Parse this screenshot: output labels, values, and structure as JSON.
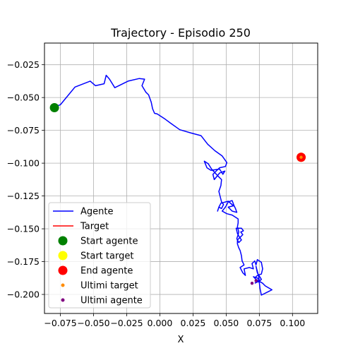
{
  "chart_data": {
    "type": "line",
    "title": "Trajectory - Episodio 250",
    "xlabel": "X",
    "ylabel": "",
    "xlim": [
      -0.087,
      0.119
    ],
    "ylim": [
      -0.2145,
      -0.0085
    ],
    "xticks": [
      -0.075,
      -0.05,
      -0.025,
      0.0,
      0.025,
      0.05,
      0.075,
      0.1
    ],
    "xtick_labels": [
      "−0.075",
      "−0.050",
      "−0.025",
      "0.000",
      "0.025",
      "0.050",
      "0.075",
      "0.100"
    ],
    "yticks": [
      -0.025,
      -0.05,
      -0.075,
      -0.1,
      -0.125,
      -0.15,
      -0.175,
      -0.2
    ],
    "ytick_labels": [
      "−0.025",
      "−0.050",
      "−0.075",
      "−0.100",
      "−0.125",
      "−0.150",
      "−0.175",
      "−0.200"
    ],
    "grid": true,
    "legend_position": "lower-left",
    "legend": [
      {
        "label": "Agente",
        "kind": "line",
        "color": "#0000ff"
      },
      {
        "label": "Target",
        "kind": "line",
        "color": "#ff0000"
      },
      {
        "label": "Start agente",
        "kind": "dot",
        "color": "#008000",
        "r": 6.5
      },
      {
        "label": "Start target",
        "kind": "dot",
        "color": "#ffff00",
        "r": 6.5
      },
      {
        "label": "End agente",
        "kind": "dot",
        "color": "#ff0000",
        "r": 6.5
      },
      {
        "label": "Ultimi target",
        "kind": "dot",
        "color": "#ff8c00",
        "r": 2.5
      },
      {
        "label": "Ultimi agente",
        "kind": "dot",
        "color": "#800080",
        "r": 2.5
      }
    ],
    "series": [
      {
        "name": "Agente",
        "color": "#0000ff",
        "points": [
          [
            -0.0795,
            -0.057
          ],
          [
            -0.075,
            -0.0555
          ],
          [
            -0.064,
            -0.042
          ],
          [
            -0.0525,
            -0.0375
          ],
          [
            -0.0485,
            -0.041
          ],
          [
            -0.042,
            -0.0395
          ],
          [
            -0.0405,
            -0.033
          ],
          [
            -0.038,
            -0.036
          ],
          [
            -0.034,
            -0.0425
          ],
          [
            -0.024,
            -0.0375
          ],
          [
            -0.0155,
            -0.0355
          ],
          [
            -0.0115,
            -0.036
          ],
          [
            -0.0135,
            -0.041
          ],
          [
            -0.0105,
            -0.046
          ],
          [
            -0.0085,
            -0.048
          ],
          [
            -0.0065,
            -0.0535
          ],
          [
            -0.0055,
            -0.0585
          ],
          [
            -0.004,
            -0.062
          ],
          [
            -0.002,
            -0.0625
          ],
          [
            0.004,
            -0.0665
          ],
          [
            0.008,
            -0.0695
          ],
          [
            0.015,
            -0.0745
          ],
          [
            0.0235,
            -0.077
          ],
          [
            0.031,
            -0.079
          ],
          [
            0.036,
            -0.0855
          ],
          [
            0.0415,
            -0.0905
          ],
          [
            0.047,
            -0.0945
          ],
          [
            0.0505,
            -0.0995
          ],
          [
            0.0495,
            -0.1025
          ],
          [
            0.045,
            -0.1035
          ],
          [
            0.04,
            -0.1085
          ],
          [
            0.041,
            -0.1125
          ],
          [
            0.045,
            -0.1075
          ],
          [
            0.049,
            -0.106
          ],
          [
            0.0475,
            -0.1085
          ],
          [
            0.045,
            -0.1045
          ],
          [
            0.0385,
            -0.1055
          ],
          [
            0.0355,
            -0.1035
          ],
          [
            0.0335,
            -0.0985
          ],
          [
            0.0365,
            -0.1005
          ],
          [
            0.039,
            -0.1045
          ],
          [
            0.0435,
            -0.1095
          ],
          [
            0.0465,
            -0.1125
          ],
          [
            0.046,
            -0.117
          ],
          [
            0.0445,
            -0.1215
          ],
          [
            0.0455,
            -0.1255
          ],
          [
            0.0465,
            -0.1295
          ],
          [
            0.048,
            -0.1315
          ],
          [
            0.0465,
            -0.1345
          ],
          [
            0.0445,
            -0.1335
          ],
          [
            0.0435,
            -0.1365
          ],
          [
            0.0445,
            -0.1335
          ],
          [
            0.046,
            -0.1305
          ],
          [
            0.0515,
            -0.129
          ],
          [
            0.0555,
            -0.1325
          ],
          [
            0.0515,
            -0.1335
          ],
          [
            0.0545,
            -0.1365
          ],
          [
            0.058,
            -0.1375
          ],
          [
            0.057,
            -0.1345
          ],
          [
            0.056,
            -0.1325
          ],
          [
            0.0545,
            -0.1285
          ],
          [
            0.0515,
            -0.1295
          ],
          [
            0.05,
            -0.1325
          ],
          [
            0.049,
            -0.134
          ],
          [
            0.047,
            -0.1365
          ],
          [
            0.0505,
            -0.1385
          ],
          [
            0.0545,
            -0.1395
          ],
          [
            0.0575,
            -0.1415
          ],
          [
            0.059,
            -0.1425
          ],
          [
            0.059,
            -0.1455
          ],
          [
            0.0585,
            -0.1485
          ],
          [
            0.0595,
            -0.1525
          ],
          [
            0.059,
            -0.1545
          ],
          [
            0.058,
            -0.1575
          ],
          [
            0.0595,
            -0.1605
          ],
          [
            0.0615,
            -0.1585
          ],
          [
            0.0595,
            -0.1555
          ],
          [
            0.0585,
            -0.1535
          ],
          [
            0.0575,
            -0.1495
          ],
          [
            0.0615,
            -0.1495
          ],
          [
            0.063,
            -0.1515
          ],
          [
            0.061,
            -0.1525
          ],
          [
            0.0625,
            -0.1545
          ],
          [
            0.0605,
            -0.1565
          ],
          [
            0.0585,
            -0.1585
          ],
          [
            0.0585,
            -0.1615
          ],
          [
            0.0595,
            -0.1645
          ],
          [
            0.0605,
            -0.1665
          ],
          [
            0.0615,
            -0.1705
          ],
          [
            0.062,
            -0.1745
          ],
          [
            0.0635,
            -0.1775
          ],
          [
            0.0605,
            -0.1795
          ],
          [
            0.0625,
            -0.1835
          ],
          [
            0.0645,
            -0.1855
          ],
          [
            0.0635,
            -0.1805
          ],
          [
            0.0675,
            -0.1795
          ],
          [
            0.0705,
            -0.1805
          ],
          [
            0.0695,
            -0.1765
          ],
          [
            0.0715,
            -0.1745
          ],
          [
            0.0725,
            -0.1775
          ],
          [
            0.0735,
            -0.1735
          ],
          [
            0.0765,
            -0.1755
          ],
          [
            0.0775,
            -0.1805
          ],
          [
            0.0765,
            -0.1845
          ],
          [
            0.0735,
            -0.1855
          ],
          [
            0.0715,
            -0.1875
          ],
          [
            0.0745,
            -0.1905
          ],
          [
            0.0765,
            -0.1885
          ],
          [
            0.0735,
            -0.1835
          ],
          [
            0.0725,
            -0.1785
          ],
          [
            0.0745,
            -0.1865
          ],
          [
            0.0755,
            -0.1955
          ],
          [
            0.0765,
            -0.2005
          ],
          [
            0.0845,
            -0.1965
          ],
          [
            0.0795,
            -0.1935
          ],
          [
            0.0775,
            -0.1915
          ],
          [
            0.0725,
            -0.1885
          ],
          [
            0.0705,
            -0.1865
          ],
          [
            0.0735,
            -0.1875
          ],
          [
            0.0755,
            -0.1895
          ],
          [
            0.0735,
            -0.1905
          ],
          [
            0.0715,
            -0.1915
          ]
        ]
      }
    ],
    "start_agente": {
      "x": -0.0795,
      "y": -0.0577,
      "color": "#008000"
    },
    "end_agente": {
      "x": 0.1065,
      "y": -0.0955,
      "color": "#ff0000"
    },
    "start_target": {
      "x": 0.1065,
      "y": -0.0955,
      "color": "#ffff00"
    },
    "ultimi_target": [
      [
        0.1065,
        -0.0955
      ]
    ],
    "ultimi_agente": [
      [
        0.0695,
        -0.1915
      ],
      [
        0.0725,
        -0.1895
      ]
    ]
  }
}
